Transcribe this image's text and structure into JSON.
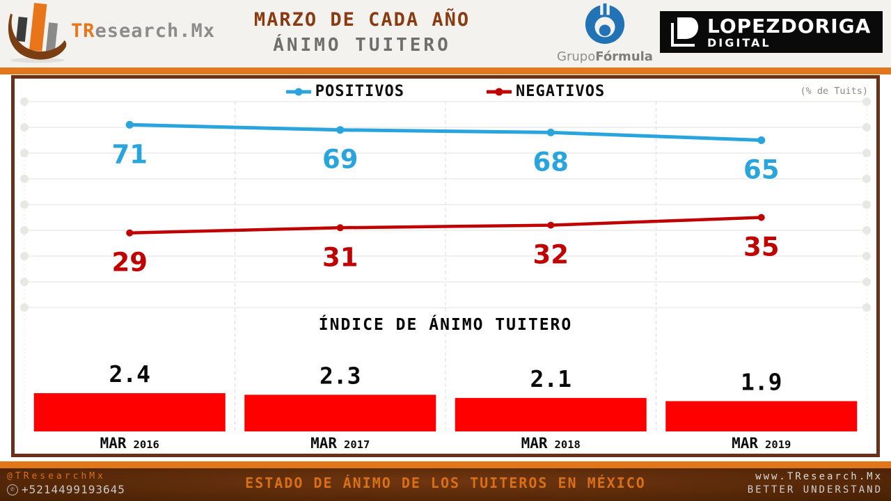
{
  "header": {
    "brand": {
      "prefix": "TR",
      "suffix": "esearch.Mx"
    },
    "title_line1": "MARZO DE CADA AÑO",
    "title_line2": "ÁNIMO TUITERO",
    "grupo_formula": {
      "regular": "Grupo",
      "bold": "Fórmula"
    },
    "lopezdoriga": {
      "name": "LOPEZDORIGA",
      "sub": "DIGITAL"
    }
  },
  "chart_data": [
    {
      "type": "line",
      "unit_label": "(% de Tuits)",
      "categories": [
        "MAR 2016",
        "MAR 2017",
        "MAR 2018",
        "MAR 2019"
      ],
      "series": [
        {
          "name": "POSITIVOS",
          "color": "#29A4DC",
          "values": [
            71,
            69,
            68,
            65
          ]
        },
        {
          "name": "NEGATIVOS",
          "color": "#C00000",
          "values": [
            29,
            31,
            32,
            35
          ]
        }
      ],
      "ylim": [
        0,
        80
      ],
      "grid": true,
      "legend_position": "top"
    },
    {
      "type": "bar",
      "title": "ÍNDICE DE ÁNIMO TUITERO",
      "categories": [
        {
          "month": "MAR",
          "year": "2016"
        },
        {
          "month": "MAR",
          "year": "2017"
        },
        {
          "month": "MAR",
          "year": "2018"
        },
        {
          "month": "MAR",
          "year": "2019"
        }
      ],
      "values": [
        2.4,
        2.3,
        2.1,
        1.9
      ],
      "bar_color": "#FF0000",
      "ylim": [
        0,
        2.6
      ]
    }
  ],
  "footer": {
    "handle": "@TResearchMx",
    "phone": "+5214499193645",
    "banner": "ESTADO DE ÁNIMO DE LOS TUITEROS EN MÉXICO",
    "website": "www.TResearch.Mx",
    "tagline": "BETTER UNDERSTAND"
  },
  "colors": {
    "accent_orange": "#E2761B",
    "panel_border": "#6B3118",
    "positive_blue": "#29A4DC",
    "negative_red": "#C00000",
    "bar_red": "#FF0000"
  }
}
